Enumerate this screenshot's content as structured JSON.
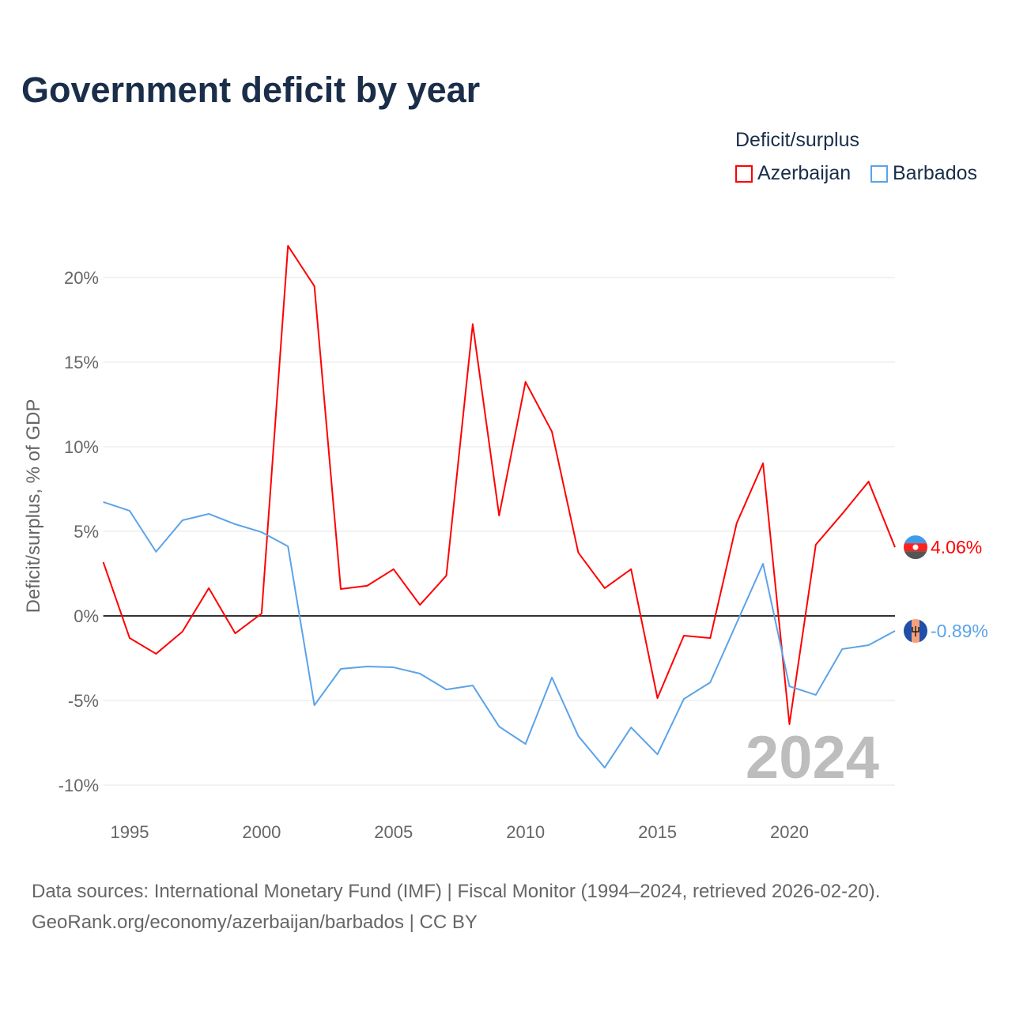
{
  "title": "Government deficit by year",
  "legend": {
    "title": "Deficit/surplus",
    "items": [
      {
        "name": "Azerbaijan",
        "color": "#ff0000"
      },
      {
        "name": "Barbados",
        "color": "#5ba3e8"
      }
    ]
  },
  "source_line1": "Data sources: International Monetary Fund (IMF) | Fiscal Monitor (1994–2024, retrieved 2026-02-20).",
  "source_line2": "GeoRank.org/economy/azerbaijan/barbados | CC BY",
  "chart_data": {
    "type": "line",
    "title": "Government deficit by year",
    "xlabel": "",
    "ylabel": "Deficit/surplus, % of GDP",
    "year_label": "2024",
    "x": [
      1994,
      1995,
      1996,
      1997,
      1998,
      1999,
      2000,
      2001,
      2002,
      2003,
      2004,
      2005,
      2006,
      2007,
      2008,
      2009,
      2010,
      2011,
      2012,
      2013,
      2014,
      2015,
      2016,
      2017,
      2018,
      2019,
      2020,
      2021,
      2022,
      2023,
      2024
    ],
    "xlim": [
      1994,
      2024
    ],
    "ylim": [
      -10,
      22
    ],
    "xticks": [
      1995,
      2000,
      2005,
      2010,
      2015,
      2020
    ],
    "xtick_labels": [
      "1995",
      "2000",
      "2005",
      "2010",
      "2015",
      "2020"
    ],
    "yticks": [
      -10,
      -5,
      0,
      5,
      10,
      15,
      20
    ],
    "ytick_labels": [
      "-10%",
      "-5%",
      "0%",
      "5%",
      "10%",
      "15%",
      "20%"
    ],
    "series": [
      {
        "name": "Azerbaijan",
        "color": "#ff0000",
        "end_label": "4.06%",
        "values": [
          3.18,
          -1.31,
          -2.24,
          -0.93,
          1.64,
          -1.03,
          0.14,
          21.87,
          19.49,
          1.59,
          1.78,
          2.76,
          0.65,
          2.38,
          17.24,
          5.93,
          13.83,
          10.89,
          3.74,
          1.64,
          2.76,
          -4.86,
          -1.17,
          -1.31,
          5.47,
          9.02,
          -6.4,
          4.21,
          6.03,
          7.94,
          4.06
        ]
      },
      {
        "name": "Barbados",
        "color": "#5ba3e8",
        "end_label": "-0.89%",
        "values": [
          6.73,
          6.21,
          3.79,
          5.65,
          6.03,
          5.42,
          4.95,
          4.11,
          -5.28,
          -3.13,
          -2.99,
          -3.04,
          -3.41,
          -4.35,
          -4.11,
          -6.54,
          -7.57,
          -3.64,
          -7.1,
          -8.97,
          -6.59,
          -8.18,
          -4.91,
          -3.93,
          -0.42,
          3.08,
          -4.16,
          -4.67,
          -1.96,
          -1.73,
          -0.89
        ]
      }
    ]
  }
}
